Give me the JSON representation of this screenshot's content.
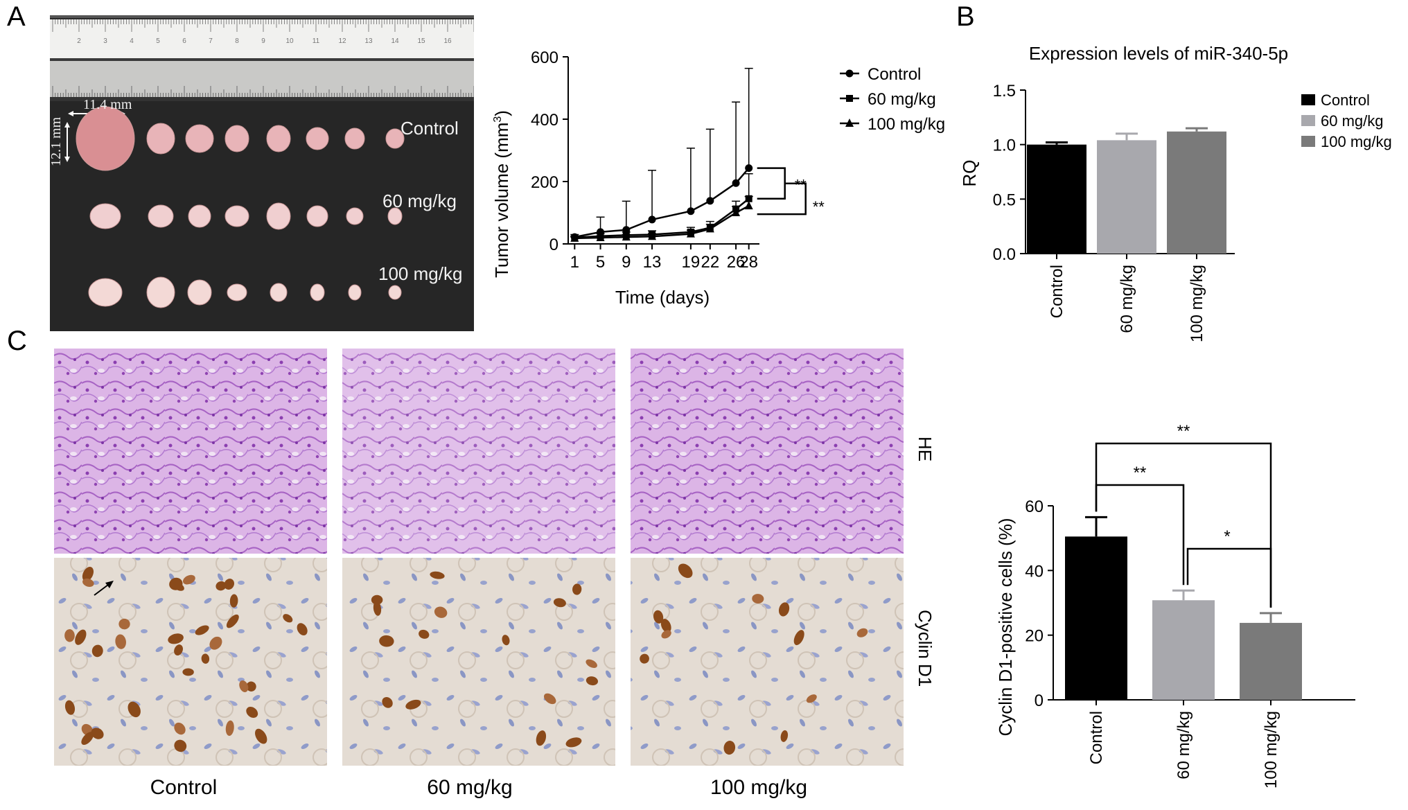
{
  "panels": {
    "a": "A",
    "b": "B",
    "c": "C"
  },
  "photo": {
    "labels": [
      "Control",
      "60 mg/kg",
      "100 mg/kg"
    ],
    "dim_width": "11.4 mm",
    "dim_height": "12.1 mm",
    "ruler_numbers": [
      "2",
      "3",
      "4",
      "5",
      "6",
      "7",
      "8",
      "9",
      "10",
      "11",
      "12",
      "13",
      "14",
      "15",
      "16"
    ]
  },
  "histology": {
    "row_labels": [
      "HE",
      "Cyclin D1"
    ],
    "column_labels": [
      "Control",
      "60 mg/kg",
      "100 mg/kg"
    ]
  },
  "chart_data": [
    {
      "type": "line",
      "xlabel": "Time (days)",
      "ylabel": "Tumor volume (mm",
      "ylabel_sup": "3",
      "ylabel_close": ")",
      "ylim": [
        0,
        600
      ],
      "yticks": [
        0,
        200,
        400,
        600
      ],
      "x": [
        1,
        5,
        9,
        13,
        19,
        22,
        26,
        28
      ],
      "series": [
        {
          "name": "Control",
          "marker": "circle",
          "values": [
            22,
            38,
            45,
            78,
            105,
            138,
            195,
            243
          ],
          "errors": [
            8,
            48,
            92,
            158,
            202,
            230,
            260,
            320
          ]
        },
        {
          "name": "60 mg/kg",
          "marker": "square",
          "values": [
            20,
            25,
            28,
            30,
            38,
            52,
            112,
            145
          ],
          "errors": [
            5,
            8,
            10,
            12,
            15,
            20,
            25,
            80
          ]
        },
        {
          "name": "100 mg/kg",
          "marker": "triangle",
          "values": [
            18,
            20,
            22,
            24,
            32,
            48,
            100,
            122
          ],
          "errors": [
            4,
            6,
            8,
            9,
            12,
            15,
            20,
            30
          ]
        }
      ],
      "significance": [
        "**",
        "**"
      ],
      "legend": "right"
    },
    {
      "type": "bar",
      "title": "Expression levels of miR-340-5p",
      "ylabel": "RQ",
      "ylim": [
        0,
        1.5
      ],
      "yticks": [
        "0.0",
        "0.5",
        "1.0",
        "1.5"
      ],
      "categories": [
        "Control",
        "60 mg/kg",
        "100 mg/kg"
      ],
      "values": [
        1.0,
        1.04,
        1.12
      ],
      "errors": [
        0.02,
        0.06,
        0.03
      ],
      "colors": [
        "#000000",
        "#a8a8ad",
        "#7a7a7a"
      ],
      "legend": "right"
    },
    {
      "type": "bar",
      "ylabel": "Cyclin D1-positive cells (%)",
      "ylim": [
        0,
        60
      ],
      "yticks": [
        0,
        20,
        40,
        60
      ],
      "categories": [
        "Control",
        "60 mg/kg",
        "100 mg/kg"
      ],
      "values": [
        50.5,
        30.8,
        23.8
      ],
      "errors": [
        6.0,
        3.0,
        3.0
      ],
      "colors": [
        "#000000",
        "#a8a8ad",
        "#7a7a7a"
      ],
      "significance": [
        {
          "from": 0,
          "to": 2,
          "label": "**"
        },
        {
          "from": 0,
          "to": 1,
          "label": "**"
        },
        {
          "from": 1,
          "to": 2,
          "label": "*"
        }
      ]
    }
  ]
}
